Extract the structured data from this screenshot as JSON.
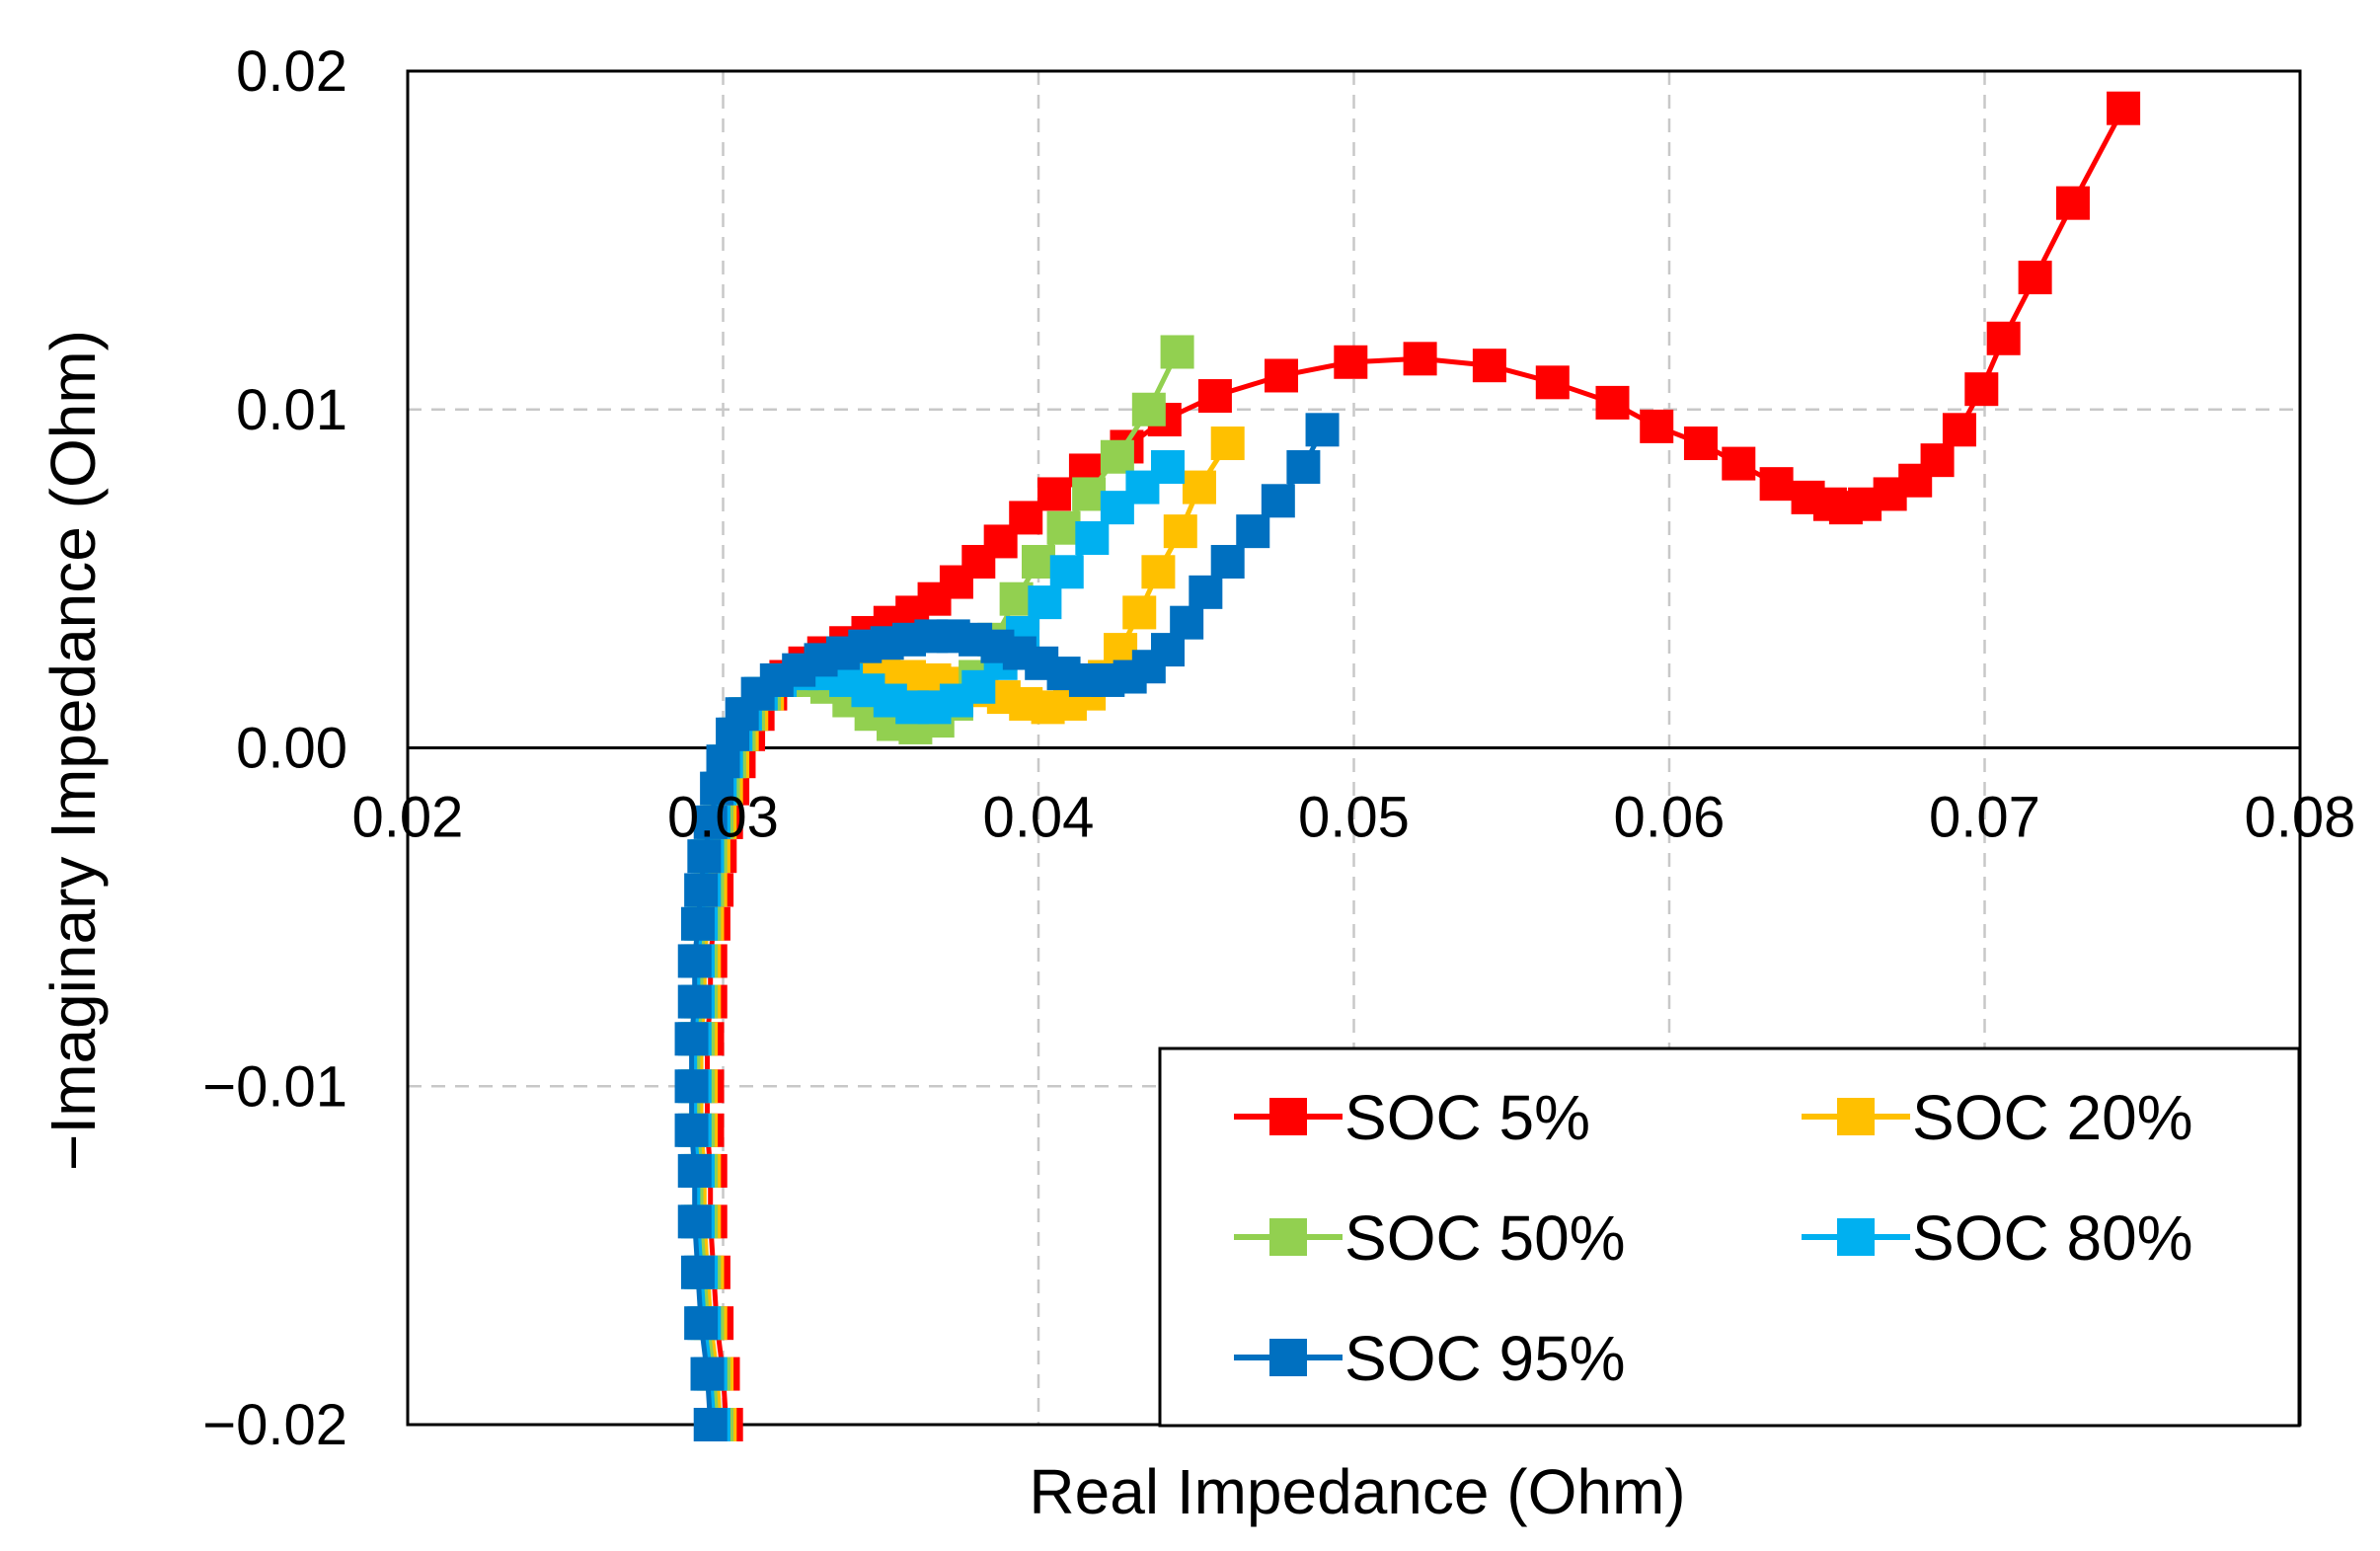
{
  "chart_data": {
    "type": "scatter",
    "title": "",
    "xlabel": "Real Impedance (Ohm)",
    "ylabel": "−Imaginary Impedance (Ohm)",
    "xlim": [
      0.02,
      0.08
    ],
    "ylim": [
      -0.02,
      0.02
    ],
    "x_ticks": [
      "0.02",
      "0.03",
      "0.04",
      "0.05",
      "0.06",
      "0.07",
      "0.08"
    ],
    "x_tick_values": [
      0.02,
      0.03,
      0.04,
      0.05,
      0.06,
      0.07,
      0.08
    ],
    "y_ticks": [
      "0.02",
      "0.01",
      "0.00",
      "−0.01",
      "−0.02"
    ],
    "y_tick_values": [
      0.02,
      0.01,
      0.0,
      -0.01,
      -0.02
    ],
    "grid": true,
    "legend_position": "bottom-right",
    "series": [
      {
        "name": "SOC 5%",
        "color": "#FF0000",
        "points": [
          [
            0.0301,
            -0.02
          ],
          [
            0.03,
            -0.0185
          ],
          [
            0.0298,
            -0.017
          ],
          [
            0.0297,
            -0.0155
          ],
          [
            0.0296,
            -0.014
          ],
          [
            0.0296,
            -0.0125
          ],
          [
            0.0295,
            -0.0113
          ],
          [
            0.0295,
            -0.01
          ],
          [
            0.0295,
            -0.0086
          ],
          [
            0.0296,
            -0.0075
          ],
          [
            0.0296,
            -0.0063
          ],
          [
            0.0297,
            -0.0052
          ],
          [
            0.0298,
            -0.0042
          ],
          [
            0.0299,
            -0.0032
          ],
          [
            0.0301,
            -0.0022
          ],
          [
            0.0303,
            -0.0012
          ],
          [
            0.0305,
            -0.0004
          ],
          [
            0.0308,
            0.0004
          ],
          [
            0.0311,
            0.001
          ],
          [
            0.0315,
            0.0016
          ],
          [
            0.032,
            0.0021
          ],
          [
            0.0326,
            0.0025
          ],
          [
            0.0332,
            0.0028
          ],
          [
            0.0339,
            0.0031
          ],
          [
            0.0346,
            0.0034
          ],
          [
            0.0353,
            0.0037
          ],
          [
            0.036,
            0.004
          ],
          [
            0.0367,
            0.0044
          ],
          [
            0.0374,
            0.0049
          ],
          [
            0.0381,
            0.0055
          ],
          [
            0.0388,
            0.0061
          ],
          [
            0.0396,
            0.0068
          ],
          [
            0.0405,
            0.0075
          ],
          [
            0.0415,
            0.0082
          ],
          [
            0.0428,
            0.0089
          ],
          [
            0.044,
            0.0097
          ],
          [
            0.0456,
            0.0104
          ],
          [
            0.0477,
            0.011
          ],
          [
            0.0499,
            0.0114
          ],
          [
            0.0521,
            0.0115
          ],
          [
            0.0543,
            0.0113
          ],
          [
            0.0563,
            0.0108
          ],
          [
            0.0582,
            0.0102
          ],
          [
            0.0596,
            0.0095
          ],
          [
            0.061,
            0.009
          ],
          [
            0.0622,
            0.0084
          ],
          [
            0.0634,
            0.0078
          ],
          [
            0.0644,
            0.0074
          ],
          [
            0.0651,
            0.0072
          ],
          [
            0.0656,
            0.0071
          ],
          [
            0.0662,
            0.0072
          ],
          [
            0.067,
            0.0075
          ],
          [
            0.0678,
            0.0079
          ],
          [
            0.0685,
            0.0085
          ],
          [
            0.0692,
            0.0094
          ],
          [
            0.0699,
            0.0106
          ],
          [
            0.0706,
            0.0121
          ],
          [
            0.0716,
            0.0139
          ],
          [
            0.0728,
            0.0161
          ],
          [
            0.0744,
            0.0189
          ]
        ]
      },
      {
        "name": "SOC 20%",
        "color": "#FFC000",
        "points": [
          [
            0.0299,
            -0.02
          ],
          [
            0.0298,
            -0.0185
          ],
          [
            0.0296,
            -0.017
          ],
          [
            0.0295,
            -0.0155
          ],
          [
            0.0294,
            -0.014
          ],
          [
            0.0294,
            -0.0125
          ],
          [
            0.0293,
            -0.0113
          ],
          [
            0.0293,
            -0.01
          ],
          [
            0.0293,
            -0.0086
          ],
          [
            0.0294,
            -0.0075
          ],
          [
            0.0294,
            -0.0063
          ],
          [
            0.0295,
            -0.0052
          ],
          [
            0.0296,
            -0.0042
          ],
          [
            0.0297,
            -0.0032
          ],
          [
            0.0299,
            -0.0022
          ],
          [
            0.0301,
            -0.0012
          ],
          [
            0.0303,
            -0.0004
          ],
          [
            0.0306,
            0.0004
          ],
          [
            0.0309,
            0.001
          ],
          [
            0.0314,
            0.0016
          ],
          [
            0.032,
            0.002
          ],
          [
            0.0327,
            0.0022
          ],
          [
            0.0335,
            0.0023
          ],
          [
            0.0343,
            0.0023
          ],
          [
            0.0351,
            0.0022
          ],
          [
            0.0359,
            0.0021
          ],
          [
            0.0367,
            0.002
          ],
          [
            0.0375,
            0.0019
          ],
          [
            0.0382,
            0.0017
          ],
          [
            0.0389,
            0.0015
          ],
          [
            0.0396,
            0.0013
          ],
          [
            0.0403,
            0.0012
          ],
          [
            0.041,
            0.0013
          ],
          [
            0.0416,
            0.0016
          ],
          [
            0.0421,
            0.0021
          ],
          [
            0.0426,
            0.0029
          ],
          [
            0.0432,
            0.004
          ],
          [
            0.0438,
            0.0052
          ],
          [
            0.0445,
            0.0064
          ],
          [
            0.0451,
            0.0077
          ],
          [
            0.046,
            0.009
          ]
        ]
      },
      {
        "name": "SOC 50%",
        "color": "#92D050",
        "points": [
          [
            0.0298,
            -0.02
          ],
          [
            0.0297,
            -0.0185
          ],
          [
            0.0295,
            -0.017
          ],
          [
            0.0294,
            -0.0155
          ],
          [
            0.0293,
            -0.014
          ],
          [
            0.0293,
            -0.0125
          ],
          [
            0.0292,
            -0.0113
          ],
          [
            0.0292,
            -0.01
          ],
          [
            0.0292,
            -0.0086
          ],
          [
            0.0293,
            -0.0075
          ],
          [
            0.0293,
            -0.0063
          ],
          [
            0.0294,
            -0.0052
          ],
          [
            0.0295,
            -0.0042
          ],
          [
            0.0296,
            -0.0032
          ],
          [
            0.0298,
            -0.0022
          ],
          [
            0.03,
            -0.0012
          ],
          [
            0.0302,
            -0.0004
          ],
          [
            0.0305,
            0.0004
          ],
          [
            0.0308,
            0.001
          ],
          [
            0.0313,
            0.0016
          ],
          [
            0.0319,
            0.002
          ],
          [
            0.0326,
            0.002
          ],
          [
            0.0333,
            0.0018
          ],
          [
            0.034,
            0.0014
          ],
          [
            0.0347,
            0.001
          ],
          [
            0.0354,
            0.0007
          ],
          [
            0.0361,
            0.0006
          ],
          [
            0.0368,
            0.0008
          ],
          [
            0.0374,
            0.0013
          ],
          [
            0.038,
            0.0021
          ],
          [
            0.0386,
            0.0032
          ],
          [
            0.0393,
            0.0044
          ],
          [
            0.04,
            0.0055
          ],
          [
            0.0408,
            0.0065
          ],
          [
            0.0416,
            0.0075
          ],
          [
            0.0425,
            0.0086
          ],
          [
            0.0435,
            0.01
          ],
          [
            0.0444,
            0.0117
          ]
        ]
      },
      {
        "name": "SOC 80%",
        "color": "#00B0F0",
        "points": [
          [
            0.0297,
            -0.02
          ],
          [
            0.0296,
            -0.0185
          ],
          [
            0.0294,
            -0.017
          ],
          [
            0.0293,
            -0.0155
          ],
          [
            0.0292,
            -0.014
          ],
          [
            0.0292,
            -0.0125
          ],
          [
            0.0291,
            -0.0113
          ],
          [
            0.0291,
            -0.01
          ],
          [
            0.0291,
            -0.0086
          ],
          [
            0.0292,
            -0.0075
          ],
          [
            0.0292,
            -0.0063
          ],
          [
            0.0293,
            -0.0052
          ],
          [
            0.0294,
            -0.0042
          ],
          [
            0.0295,
            -0.0032
          ],
          [
            0.0297,
            -0.0022
          ],
          [
            0.0299,
            -0.0012
          ],
          [
            0.0301,
            -0.0004
          ],
          [
            0.0304,
            0.0004
          ],
          [
            0.0307,
            0.001
          ],
          [
            0.0312,
            0.0016
          ],
          [
            0.0318,
            0.002
          ],
          [
            0.0325,
            0.0022
          ],
          [
            0.0332,
            0.0022
          ],
          [
            0.0339,
            0.002
          ],
          [
            0.0346,
            0.0017
          ],
          [
            0.0353,
            0.0014
          ],
          [
            0.036,
            0.0012
          ],
          [
            0.0367,
            0.0012
          ],
          [
            0.0374,
            0.0014
          ],
          [
            0.0381,
            0.0018
          ],
          [
            0.0388,
            0.0025
          ],
          [
            0.0395,
            0.0034
          ],
          [
            0.0402,
            0.0043
          ],
          [
            0.0409,
            0.0052
          ],
          [
            0.0417,
            0.0062
          ],
          [
            0.0425,
            0.0071
          ],
          [
            0.0433,
            0.0077
          ],
          [
            0.0441,
            0.0083
          ]
        ]
      },
      {
        "name": "SOC 95%",
        "color": "#0070C0",
        "points": [
          [
            0.0296,
            -0.02
          ],
          [
            0.0295,
            -0.0185
          ],
          [
            0.0293,
            -0.017
          ],
          [
            0.0292,
            -0.0155
          ],
          [
            0.0291,
            -0.014
          ],
          [
            0.0291,
            -0.0125
          ],
          [
            0.029,
            -0.0113
          ],
          [
            0.029,
            -0.01
          ],
          [
            0.029,
            -0.0086
          ],
          [
            0.0291,
            -0.0075
          ],
          [
            0.0291,
            -0.0063
          ],
          [
            0.0292,
            -0.0052
          ],
          [
            0.0293,
            -0.0042
          ],
          [
            0.0294,
            -0.0032
          ],
          [
            0.0296,
            -0.0022
          ],
          [
            0.0298,
            -0.0012
          ],
          [
            0.03,
            -0.0004
          ],
          [
            0.0303,
            0.0004
          ],
          [
            0.0306,
            0.001
          ],
          [
            0.0311,
            0.0016
          ],
          [
            0.0317,
            0.002
          ],
          [
            0.0324,
            0.0023
          ],
          [
            0.0331,
            0.0026
          ],
          [
            0.0338,
            0.0028
          ],
          [
            0.0345,
            0.003
          ],
          [
            0.0352,
            0.0031
          ],
          [
            0.0359,
            0.0032
          ],
          [
            0.0366,
            0.0033
          ],
          [
            0.0373,
            0.0033
          ],
          [
            0.038,
            0.0032
          ],
          [
            0.0387,
            0.003
          ],
          [
            0.0394,
            0.0028
          ],
          [
            0.0401,
            0.0025
          ],
          [
            0.0408,
            0.0022
          ],
          [
            0.0415,
            0.002
          ],
          [
            0.0422,
            0.002
          ],
          [
            0.0429,
            0.0021
          ],
          [
            0.0435,
            0.0024
          ],
          [
            0.0441,
            0.0029
          ],
          [
            0.0447,
            0.0037
          ],
          [
            0.0453,
            0.0046
          ],
          [
            0.046,
            0.0055
          ],
          [
            0.0468,
            0.0064
          ],
          [
            0.0476,
            0.0073
          ],
          [
            0.0484,
            0.0083
          ],
          [
            0.049,
            0.0094
          ]
        ]
      }
    ]
  }
}
